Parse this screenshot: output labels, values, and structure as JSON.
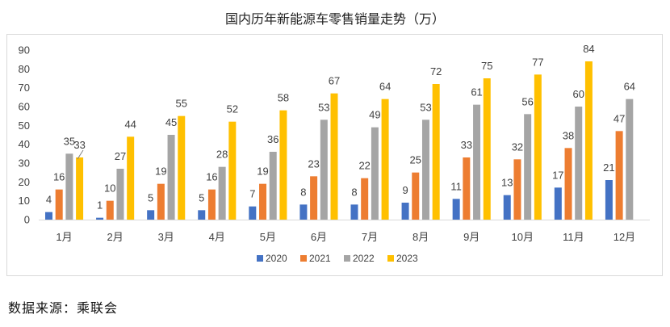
{
  "chart_data": {
    "type": "bar",
    "title": "国内历年新能源车零售销量走势（万）",
    "categories": [
      "1月",
      "2月",
      "3月",
      "4月",
      "5月",
      "6月",
      "7月",
      "8月",
      "9月",
      "10月",
      "11月",
      "12月"
    ],
    "series": [
      {
        "name": "2020",
        "color": "#4472C4",
        "values": [
          4,
          1,
          5,
          5,
          7,
          8,
          8,
          9,
          11,
          13,
          17,
          21
        ]
      },
      {
        "name": "2021",
        "color": "#ED7D31",
        "values": [
          16,
          10,
          19,
          16,
          19,
          23,
          22,
          25,
          33,
          32,
          38,
          47
        ]
      },
      {
        "name": "2022",
        "color": "#A5A5A5",
        "values": [
          35,
          27,
          45,
          28,
          36,
          53,
          49,
          53,
          61,
          56,
          60,
          64
        ]
      },
      {
        "name": "2023",
        "color": "#FFC000",
        "values": [
          33,
          44,
          55,
          52,
          58,
          67,
          64,
          72,
          75,
          77,
          84,
          null
        ]
      }
    ],
    "ylim": [
      0,
      90
    ],
    "yticks": [
      0,
      10,
      20,
      30,
      40,
      50,
      60,
      70,
      80,
      90
    ],
    "xlabel": "",
    "ylabel": "",
    "grid": false,
    "legend_position": "bottom"
  },
  "source_note": "数据来源：乘联会"
}
